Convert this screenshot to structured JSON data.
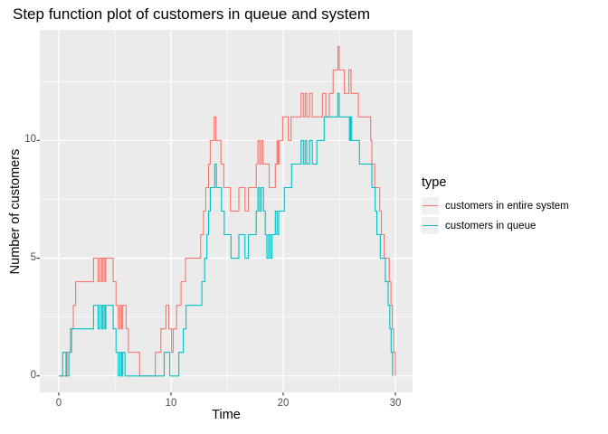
{
  "chart": {
    "title": "Step function plot of customers in queue and system",
    "xlabel": "Time",
    "ylabel": "Number of customers"
  },
  "legend": {
    "title": "type",
    "entries": [
      {
        "label": "customers in entire system",
        "color": "#F8766D"
      },
      {
        "label": "customers in queue",
        "color": "#00BFC4"
      }
    ]
  },
  "colors": {
    "panel_background": "#EBEBEB",
    "grid": "#FFFFFF",
    "tick_mark": "#333333",
    "tick_label": "#4D4D4D",
    "system_line": "#F8766D",
    "queue_line": "#00BFC4"
  },
  "chart_data": {
    "type": "line",
    "subtype": "step",
    "title": "Step function plot of customers in queue and system",
    "xlabel": "Time",
    "ylabel": "Number of customers",
    "xlim": [
      -1.69,
      31.53
    ],
    "ylim": [
      -0.7,
      14.7
    ],
    "x_ticks": [
      0,
      10,
      20,
      30
    ],
    "y_ticks": [
      0,
      5,
      10
    ],
    "x_minor": [
      5,
      15,
      25
    ],
    "y_minor": [
      2.5,
      7.5,
      12.5
    ],
    "grid": true,
    "legend_position": "right",
    "series": [
      {
        "name": "customers in entire system",
        "color": "#F8766D",
        "steps": [
          [
            0,
            0
          ],
          [
            0.73,
            1
          ],
          [
            1.15,
            2
          ],
          [
            1.3,
            3
          ],
          [
            1.5,
            4
          ],
          [
            3.1,
            5
          ],
          [
            3.5,
            4
          ],
          [
            3.65,
            5
          ],
          [
            3.85,
            4
          ],
          [
            3.95,
            5
          ],
          [
            4.1,
            4
          ],
          [
            4.2,
            5
          ],
          [
            4.85,
            4
          ],
          [
            5.1,
            3
          ],
          [
            5.3,
            2
          ],
          [
            5.45,
            3
          ],
          [
            5.6,
            2
          ],
          [
            5.7,
            3
          ],
          [
            6.0,
            2
          ],
          [
            6.2,
            1
          ],
          [
            7.2,
            0
          ],
          [
            8.6,
            1
          ],
          [
            9.1,
            2
          ],
          [
            9.55,
            3
          ],
          [
            9.8,
            2
          ],
          [
            10.05,
            1
          ],
          [
            10.2,
            2
          ],
          [
            10.5,
            3
          ],
          [
            10.9,
            4
          ],
          [
            11.3,
            5
          ],
          [
            12.65,
            6
          ],
          [
            12.9,
            7
          ],
          [
            13.1,
            8
          ],
          [
            13.35,
            9
          ],
          [
            13.5,
            10
          ],
          [
            13.85,
            11
          ],
          [
            14.0,
            10
          ],
          [
            14.45,
            9
          ],
          [
            14.7,
            8
          ],
          [
            15.3,
            7
          ],
          [
            16.05,
            8
          ],
          [
            16.6,
            7
          ],
          [
            16.9,
            8
          ],
          [
            17.6,
            9
          ],
          [
            17.75,
            10
          ],
          [
            17.9,
            9
          ],
          [
            18.05,
            10
          ],
          [
            18.2,
            9
          ],
          [
            18.75,
            8
          ],
          [
            19.3,
            9
          ],
          [
            19.45,
            10
          ],
          [
            19.55,
            9
          ],
          [
            19.65,
            10
          ],
          [
            19.95,
            11
          ],
          [
            20.45,
            10
          ],
          [
            20.7,
            11
          ],
          [
            21.6,
            12
          ],
          [
            21.8,
            11
          ],
          [
            21.95,
            12
          ],
          [
            22.1,
            11
          ],
          [
            22.35,
            12
          ],
          [
            22.6,
            11
          ],
          [
            23.5,
            12
          ],
          [
            23.8,
            11
          ],
          [
            24.1,
            12
          ],
          [
            24.45,
            13
          ],
          [
            24.88,
            14
          ],
          [
            25.0,
            13
          ],
          [
            25.45,
            12
          ],
          [
            25.85,
            13
          ],
          [
            26.05,
            12
          ],
          [
            26.7,
            11
          ],
          [
            27.8,
            10
          ],
          [
            27.9,
            9
          ],
          [
            28.15,
            8
          ],
          [
            28.6,
            7
          ],
          [
            28.75,
            6
          ],
          [
            29.0,
            5
          ],
          [
            29.45,
            4
          ],
          [
            29.6,
            3
          ],
          [
            29.72,
            2
          ],
          [
            29.85,
            1
          ],
          [
            30.0,
            0
          ]
        ]
      },
      {
        "name": "customers in queue",
        "color": "#00BFC4",
        "steps": [
          [
            0,
            0
          ],
          [
            0.35,
            1
          ],
          [
            0.65,
            0
          ],
          [
            0.9,
            1
          ],
          [
            1.05,
            2
          ],
          [
            3.1,
            3
          ],
          [
            3.5,
            2
          ],
          [
            3.65,
            3
          ],
          [
            3.85,
            2
          ],
          [
            3.95,
            3
          ],
          [
            4.1,
            2
          ],
          [
            4.2,
            3
          ],
          [
            4.85,
            2
          ],
          [
            5.1,
            1
          ],
          [
            5.3,
            0
          ],
          [
            5.45,
            1
          ],
          [
            5.6,
            0
          ],
          [
            5.7,
            1
          ],
          [
            5.9,
            0
          ],
          [
            9.4,
            1
          ],
          [
            9.9,
            0
          ],
          [
            10.7,
            1
          ],
          [
            11.1,
            2
          ],
          [
            11.35,
            3
          ],
          [
            12.75,
            4
          ],
          [
            13.0,
            5
          ],
          [
            13.2,
            6
          ],
          [
            13.35,
            7
          ],
          [
            13.5,
            8
          ],
          [
            13.9,
            9
          ],
          [
            14.05,
            8
          ],
          [
            14.5,
            7
          ],
          [
            14.75,
            6
          ],
          [
            15.35,
            5
          ],
          [
            16.05,
            6
          ],
          [
            16.6,
            5
          ],
          [
            16.9,
            6
          ],
          [
            17.6,
            7
          ],
          [
            17.75,
            8
          ],
          [
            17.9,
            7
          ],
          [
            18.05,
            8
          ],
          [
            18.25,
            7
          ],
          [
            18.4,
            6
          ],
          [
            18.55,
            5
          ],
          [
            18.7,
            6
          ],
          [
            18.85,
            5
          ],
          [
            19.0,
            6
          ],
          [
            19.3,
            7
          ],
          [
            19.45,
            6
          ],
          [
            19.6,
            7
          ],
          [
            20.1,
            8
          ],
          [
            20.75,
            9
          ],
          [
            21.6,
            10
          ],
          [
            21.8,
            9
          ],
          [
            21.95,
            10
          ],
          [
            22.1,
            9
          ],
          [
            22.35,
            10
          ],
          [
            22.6,
            9
          ],
          [
            23.0,
            10
          ],
          [
            23.65,
            11
          ],
          [
            24.86,
            12
          ],
          [
            25.0,
            11
          ],
          [
            25.9,
            10
          ],
          [
            26.0,
            11
          ],
          [
            26.1,
            10
          ],
          [
            26.8,
            9
          ],
          [
            27.9,
            8
          ],
          [
            28.2,
            7
          ],
          [
            28.35,
            6
          ],
          [
            28.65,
            5
          ],
          [
            29.1,
            4
          ],
          [
            29.35,
            3
          ],
          [
            29.5,
            2
          ],
          [
            29.62,
            1
          ],
          [
            29.75,
            0
          ]
        ]
      }
    ]
  }
}
